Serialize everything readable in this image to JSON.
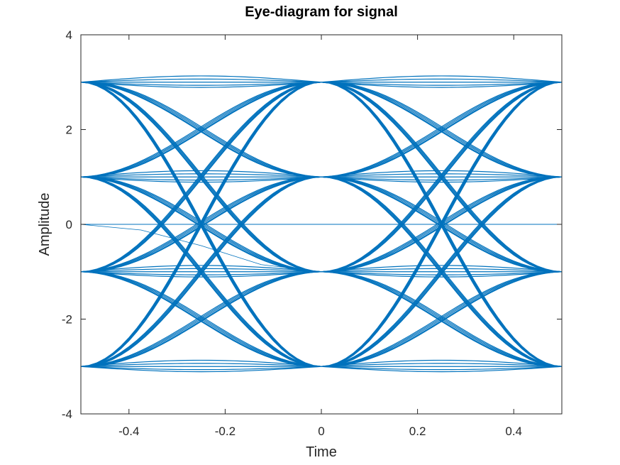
{
  "chart_data": {
    "type": "line",
    "title": "Eye-diagram for signal",
    "xlabel": "Time",
    "ylabel": "Amplitude",
    "xlim": [
      -0.5,
      0.5
    ],
    "ylim": [
      -4,
      4
    ],
    "x_ticks": [
      -0.4,
      -0.2,
      0,
      0.2,
      0.4
    ],
    "x_tick_labels": [
      "-0.4",
      "-0.2",
      "0",
      "0.2",
      "0.4"
    ],
    "y_ticks": [
      -4,
      -2,
      0,
      2,
      4
    ],
    "y_tick_labels": [
      "-4",
      "-2",
      "0",
      "2",
      "4"
    ],
    "grid": false,
    "legend": "none",
    "series_color": "#0072BD",
    "levels": [
      -3,
      -1,
      1,
      3
    ],
    "symbol_period": 0.5,
    "symbol_offsets": [
      0,
      0.03,
      0.06,
      -0.03,
      -0.05
    ],
    "zero_line": {
      "x": [
        -0.5,
        0.5
      ],
      "y": [
        0,
        0
      ]
    },
    "zero_to_minus_one": {
      "x": [
        -0.5,
        -0.375,
        -0.25,
        -0.125,
        0
      ],
      "y": [
        0,
        -0.12,
        -0.45,
        -0.85,
        -1
      ]
    }
  }
}
